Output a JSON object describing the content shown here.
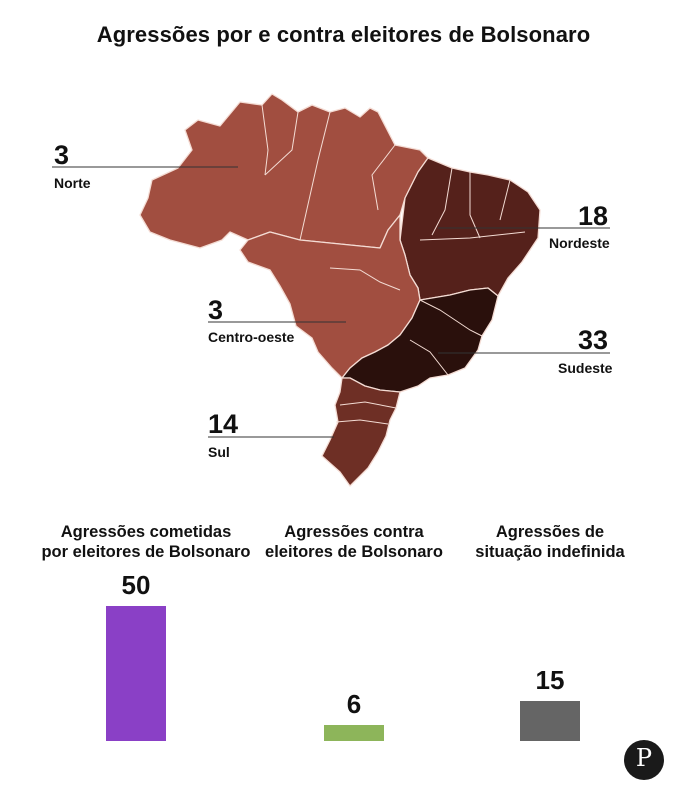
{
  "title": "Agressões por e contra eleitores de Bolsonaro",
  "colors": {
    "norte": "#a14e40",
    "centro_oeste": "#a14e40",
    "nordeste": "#55211b",
    "sudeste": "#2a100c",
    "sul": "#6e2f25",
    "bar_by": "#8a40c6",
    "bar_against": "#8db55a",
    "bar_undefined": "#656565"
  },
  "chart_data": [
    {
      "type": "map",
      "title": "Agressões por e contra eleitores de Bolsonaro",
      "regions": [
        {
          "name": "Norte",
          "value": 3
        },
        {
          "name": "Nordeste",
          "value": 18
        },
        {
          "name": "Centro-oeste",
          "value": 3
        },
        {
          "name": "Sudeste",
          "value": 33
        },
        {
          "name": "Sul",
          "value": 14
        }
      ]
    },
    {
      "type": "bar",
      "categories": [
        "Agressões cometidas\npor eleitores de Bolsonaro",
        "Agressões contra\neleitores de Bolsonaro",
        "Agressões de\nsituação indefinida"
      ],
      "values": [
        50,
        6,
        15
      ],
      "ylim": [
        0,
        50
      ],
      "grid": false
    }
  ],
  "logo": {
    "text": "P",
    "icon": "publisher-logo-icon"
  }
}
